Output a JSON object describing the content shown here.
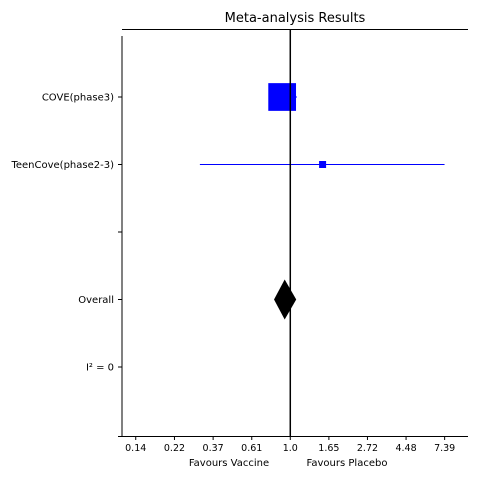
{
  "chart_data": {
    "type": "forest",
    "title": "Meta-analysis Results",
    "xlabel_left": "Favours Vaccine",
    "xlabel_right": "Favours Placebo",
    "x_scale": "log",
    "xlim": [
      0.113,
      10.0
    ],
    "x_ticks": [
      {
        "value": 0.135,
        "label": "0.14"
      },
      {
        "value": 0.223,
        "label": "0.22"
      },
      {
        "value": 0.368,
        "label": "0.37"
      },
      {
        "value": 0.607,
        "label": "0.61"
      },
      {
        "value": 1.0,
        "label": "1.0"
      },
      {
        "value": 1.649,
        "label": "1.65"
      },
      {
        "value": 2.718,
        "label": "2.72"
      },
      {
        "value": 4.482,
        "label": "4.48"
      },
      {
        "value": 7.389,
        "label": "7.39"
      }
    ],
    "reference_line": 1.0,
    "color_study": "#0000ff",
    "color_overall": "#000000",
    "rows": [
      {
        "label": "COVE(phase3)",
        "kind": "study",
        "estimate": 0.9,
        "ci_low": 0.76,
        "ci_high": 1.09
      },
      {
        "label": "TeenCove(phase2-3)",
        "kind": "study",
        "estimate": 1.52,
        "ci_low": 0.31,
        "ci_high": 7.38
      },
      {
        "label": "",
        "kind": "blank"
      },
      {
        "label": "Overall",
        "kind": "overall",
        "estimate": 0.93,
        "ci_low": 0.81,
        "ci_high": 1.08
      },
      {
        "label": "I² = 0",
        "kind": "text"
      }
    ]
  }
}
